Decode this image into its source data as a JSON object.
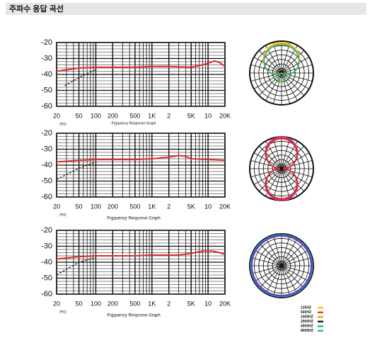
{
  "header": {
    "title": "주파수 응답 곡선"
  },
  "chart_data": [
    {
      "type": "line",
      "x_label": "Frgquency Response Graph",
      "unit_label": "(Hz)",
      "xscale": "log",
      "xlim": [
        20,
        20000
      ],
      "ylim": [
        -60,
        -20
      ],
      "xticks": [
        20,
        50,
        100,
        200,
        500,
        {
          "value": 1000,
          "label": "1K"
        },
        {
          "value": 2000,
          "label": "2"
        },
        {
          "value": 5000,
          "label": "5K"
        },
        {
          "value": 10000,
          "label": "10"
        },
        {
          "value": 20000,
          "label": "20K"
        }
      ],
      "yticks": [
        -20,
        -30,
        -40,
        -50,
        -60
      ],
      "grid": true,
      "series": [
        {
          "color": "#e02a2a",
          "x": [
            20,
            50,
            100,
            200,
            500,
            1000,
            2000,
            5000,
            8000,
            10000,
            13000,
            16000,
            20000
          ],
          "values": [
            -38,
            -36,
            -35.5,
            -35.5,
            -35.5,
            -35,
            -35,
            -35.5,
            -34,
            -33,
            -31.5,
            -32.5,
            -35
          ]
        },
        {
          "color": "#222222",
          "dash": true,
          "x": [
            28,
            50,
            100
          ],
          "values": [
            -47,
            -42,
            -37
          ]
        }
      ]
    },
    {
      "type": "line",
      "x_label": "Frgquency Response Graph",
      "unit_label": "(Hz)",
      "xscale": "log",
      "xlim": [
        20,
        20000
      ],
      "ylim": [
        -60,
        -20
      ],
      "xticks": [
        20,
        50,
        100,
        200,
        500,
        {
          "value": 1000,
          "label": "1K"
        },
        {
          "value": 2000,
          "label": "2"
        },
        {
          "value": 5000,
          "label": "5K"
        },
        {
          "value": 10000,
          "label": "10"
        },
        {
          "value": 20000,
          "label": "20K"
        }
      ],
      "yticks": [
        -20,
        -30,
        -40,
        -50,
        -60
      ],
      "grid": true,
      "series": [
        {
          "color": "#e02a2a",
          "x": [
            20,
            50,
            100,
            500,
            1000,
            2000,
            3000,
            4000,
            5000,
            10000,
            20000
          ],
          "values": [
            -38,
            -37,
            -36.5,
            -36.5,
            -36,
            -35,
            -34,
            -34.5,
            -36,
            -36.5,
            -37
          ]
        },
        {
          "color": "#222222",
          "dash": true,
          "x": [
            20,
            50,
            100
          ],
          "values": [
            -49,
            -42,
            -38
          ]
        }
      ]
    },
    {
      "type": "line",
      "x_label": "Frgquency Response Graph",
      "unit_label": "(Hz)",
      "xscale": "log",
      "xlim": [
        20,
        20000
      ],
      "ylim": [
        -60,
        -20
      ],
      "xticks": [
        20,
        50,
        100,
        200,
        500,
        {
          "value": 1000,
          "label": "1K"
        },
        {
          "value": 2000,
          "label": "2"
        },
        {
          "value": 5000,
          "label": "5K"
        },
        {
          "value": 10000,
          "label": "10"
        },
        {
          "value": 20000,
          "label": "20K"
        }
      ],
      "yticks": [
        -20,
        -30,
        -40,
        -50,
        -60
      ],
      "grid": true,
      "series": [
        {
          "color": "#e02a2a",
          "x": [
            20,
            50,
            100,
            500,
            1000,
            3000,
            5000,
            8000,
            12000,
            16000,
            20000
          ],
          "values": [
            -38,
            -36.5,
            -36,
            -36,
            -35.5,
            -35.5,
            -34.5,
            -33,
            -33,
            -34,
            -35
          ]
        },
        {
          "color": "#222222",
          "dash": true,
          "x": [
            20,
            50,
            100
          ],
          "values": [
            -48,
            -40,
            -37
          ]
        }
      ]
    }
  ],
  "polar_legend": [
    {
      "label": "125HZ",
      "color": "#f2d200"
    },
    {
      "label": "500HZ",
      "color": "#e8421d"
    },
    {
      "label": "1000HZ",
      "color": "#f39a2c"
    },
    {
      "label": "2000HZ",
      "color": "#222222"
    },
    {
      "label": "4000HZ",
      "color": "#2bb673"
    },
    {
      "label": "8000HZ",
      "color": "#29b6d8"
    }
  ]
}
